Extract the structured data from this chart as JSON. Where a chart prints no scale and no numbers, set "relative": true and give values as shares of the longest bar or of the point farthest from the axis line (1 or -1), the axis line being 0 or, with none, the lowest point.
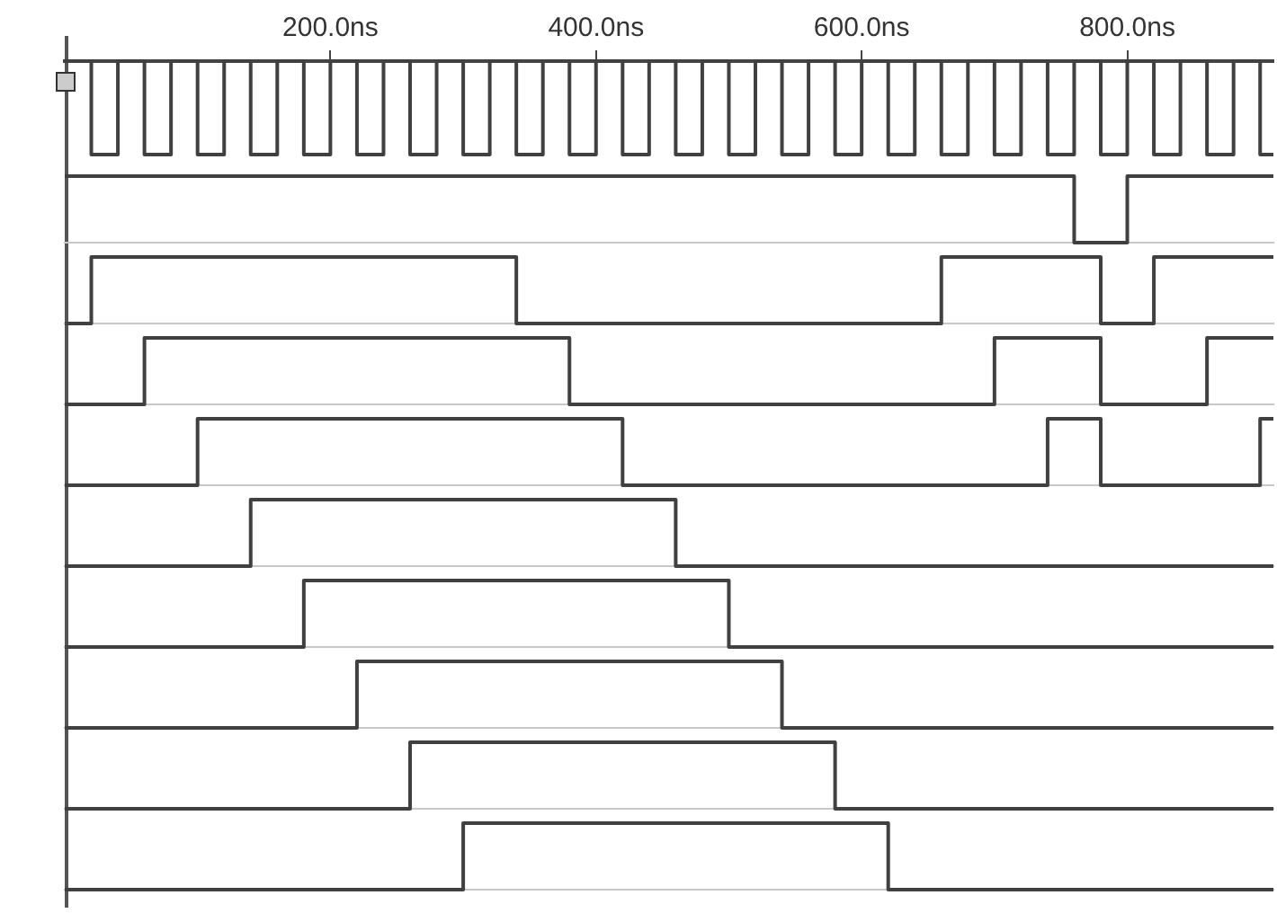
{
  "chart_data": [
    {
      "type": "step",
      "relative": true,
      "tick_labels": "x",
      "xlim": [
        0,
        910
      ],
      "xticks": [
        {
          "value": 200,
          "label": "200.0ns"
        },
        {
          "value": 400,
          "label": "400.0ns"
        },
        {
          "value": 600,
          "label": "600.0ns"
        },
        {
          "value": 800,
          "label": "800.0ns"
        }
      ],
      "series": [
        {
          "color": "#404040",
          "x": [
            0,
            20,
            40,
            60,
            80,
            100,
            120,
            140,
            160,
            180,
            200,
            220,
            240,
            260,
            280,
            300,
            320,
            340,
            360,
            380,
            400,
            420,
            440,
            460,
            480,
            500,
            520,
            540,
            560,
            580,
            600,
            620,
            640,
            660,
            680,
            700,
            720,
            740,
            760,
            780,
            800,
            820,
            840,
            860,
            880,
            900,
            910
          ],
          "values": [
            1,
            0,
            1,
            0,
            1,
            0,
            1,
            0,
            1,
            0,
            1,
            0,
            1,
            0,
            1,
            0,
            1,
            0,
            1,
            0,
            1,
            0,
            1,
            0,
            1,
            0,
            1,
            0,
            1,
            0,
            1,
            0,
            1,
            0,
            1,
            0,
            1,
            0,
            1,
            0,
            1,
            0,
            1,
            0,
            1,
            0,
            0
          ]
        }
      ]
    },
    {
      "type": "step",
      "relative": true,
      "tick_labels": false,
      "xlim": [
        0,
        910
      ],
      "series": [
        {
          "color": "#404040",
          "x": [
            0,
            760,
            800,
            910
          ],
          "values": [
            1,
            0,
            1,
            1
          ]
        }
      ]
    },
    {
      "type": "step",
      "relative": true,
      "tick_labels": false,
      "xlim": [
        0,
        910
      ],
      "series": [
        {
          "color": "#404040",
          "x": [
            0,
            20,
            340,
            660,
            780,
            820,
            910
          ],
          "values": [
            0,
            1,
            0,
            1,
            0,
            1,
            1
          ]
        }
      ]
    },
    {
      "type": "step",
      "relative": true,
      "tick_labels": false,
      "xlim": [
        0,
        910
      ],
      "series": [
        {
          "color": "#404040",
          "x": [
            0,
            60,
            380,
            700,
            780,
            860,
            910
          ],
          "values": [
            0,
            1,
            0,
            1,
            0,
            1,
            1
          ]
        }
      ]
    },
    {
      "type": "step",
      "relative": true,
      "tick_labels": false,
      "xlim": [
        0,
        910
      ],
      "series": [
        {
          "color": "#404040",
          "x": [
            0,
            100,
            420,
            740,
            780,
            900,
            910
          ],
          "values": [
            0,
            1,
            0,
            1,
            0,
            1,
            1
          ]
        }
      ]
    },
    {
      "type": "step",
      "relative": true,
      "tick_labels": false,
      "xlim": [
        0,
        910
      ],
      "series": [
        {
          "color": "#404040",
          "x": [
            0,
            140,
            460,
            910
          ],
          "values": [
            0,
            1,
            0,
            0
          ]
        }
      ]
    },
    {
      "type": "step",
      "relative": true,
      "tick_labels": false,
      "xlim": [
        0,
        910
      ],
      "series": [
        {
          "color": "#404040",
          "x": [
            0,
            180,
            500,
            910
          ],
          "values": [
            0,
            1,
            0,
            0
          ]
        }
      ]
    },
    {
      "type": "step",
      "relative": true,
      "tick_labels": false,
      "xlim": [
        0,
        910
      ],
      "series": [
        {
          "color": "#404040",
          "x": [
            0,
            220,
            540,
            910
          ],
          "values": [
            0,
            1,
            0,
            0
          ]
        }
      ]
    },
    {
      "type": "step",
      "relative": true,
      "tick_labels": false,
      "xlim": [
        0,
        910
      ],
      "series": [
        {
          "color": "#404040",
          "x": [
            0,
            260,
            580,
            910
          ],
          "values": [
            0,
            1,
            0,
            0
          ]
        }
      ]
    },
    {
      "type": "step",
      "relative": true,
      "tick_labels": false,
      "xlim": [
        0,
        910
      ],
      "series": [
        {
          "color": "#404040",
          "x": [
            0,
            300,
            620,
            910
          ],
          "values": [
            0,
            1,
            0,
            0
          ]
        }
      ]
    }
  ]
}
